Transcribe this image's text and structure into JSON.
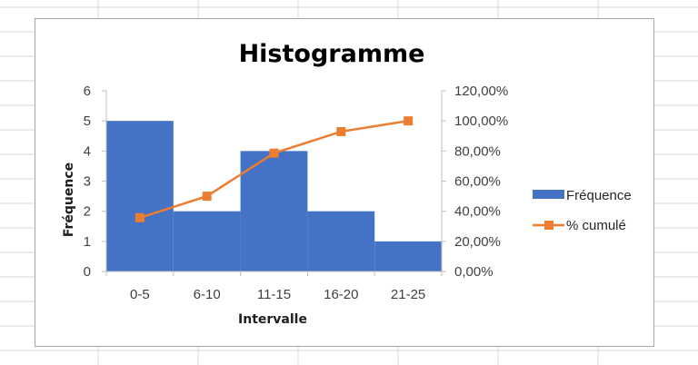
{
  "colors": {
    "bar": "#4472C4",
    "line": "#ED7D31",
    "axis": "#bfbfbf",
    "cell_grid": "#d9d9d9"
  },
  "chart_data": {
    "type": "bar",
    "title": "Histogramme",
    "xlabel": "Intervalle",
    "ylabel": "Fréquence",
    "categories": [
      "0-5",
      "6-10",
      "11-15",
      "16-20",
      "21-25"
    ],
    "series": [
      {
        "name": "Fréquence",
        "type": "bar",
        "axis": "primary",
        "values": [
          5,
          2,
          4,
          2,
          1
        ]
      },
      {
        "name": "% cumulé",
        "type": "line",
        "axis": "secondary",
        "values": [
          35.7,
          50.0,
          78.6,
          92.9,
          100.0
        ]
      }
    ],
    "ylim": [
      0,
      6
    ],
    "y_ticks": [
      "0",
      "1",
      "2",
      "3",
      "4",
      "5",
      "6"
    ],
    "y2lim": [
      0,
      120
    ],
    "y2_ticks": [
      "0,00%",
      "20,00%",
      "40,00%",
      "60,00%",
      "80,00%",
      "100,00%",
      "120,00%"
    ],
    "legend_position": "right",
    "grid": false,
    "bar_gap": 0
  }
}
